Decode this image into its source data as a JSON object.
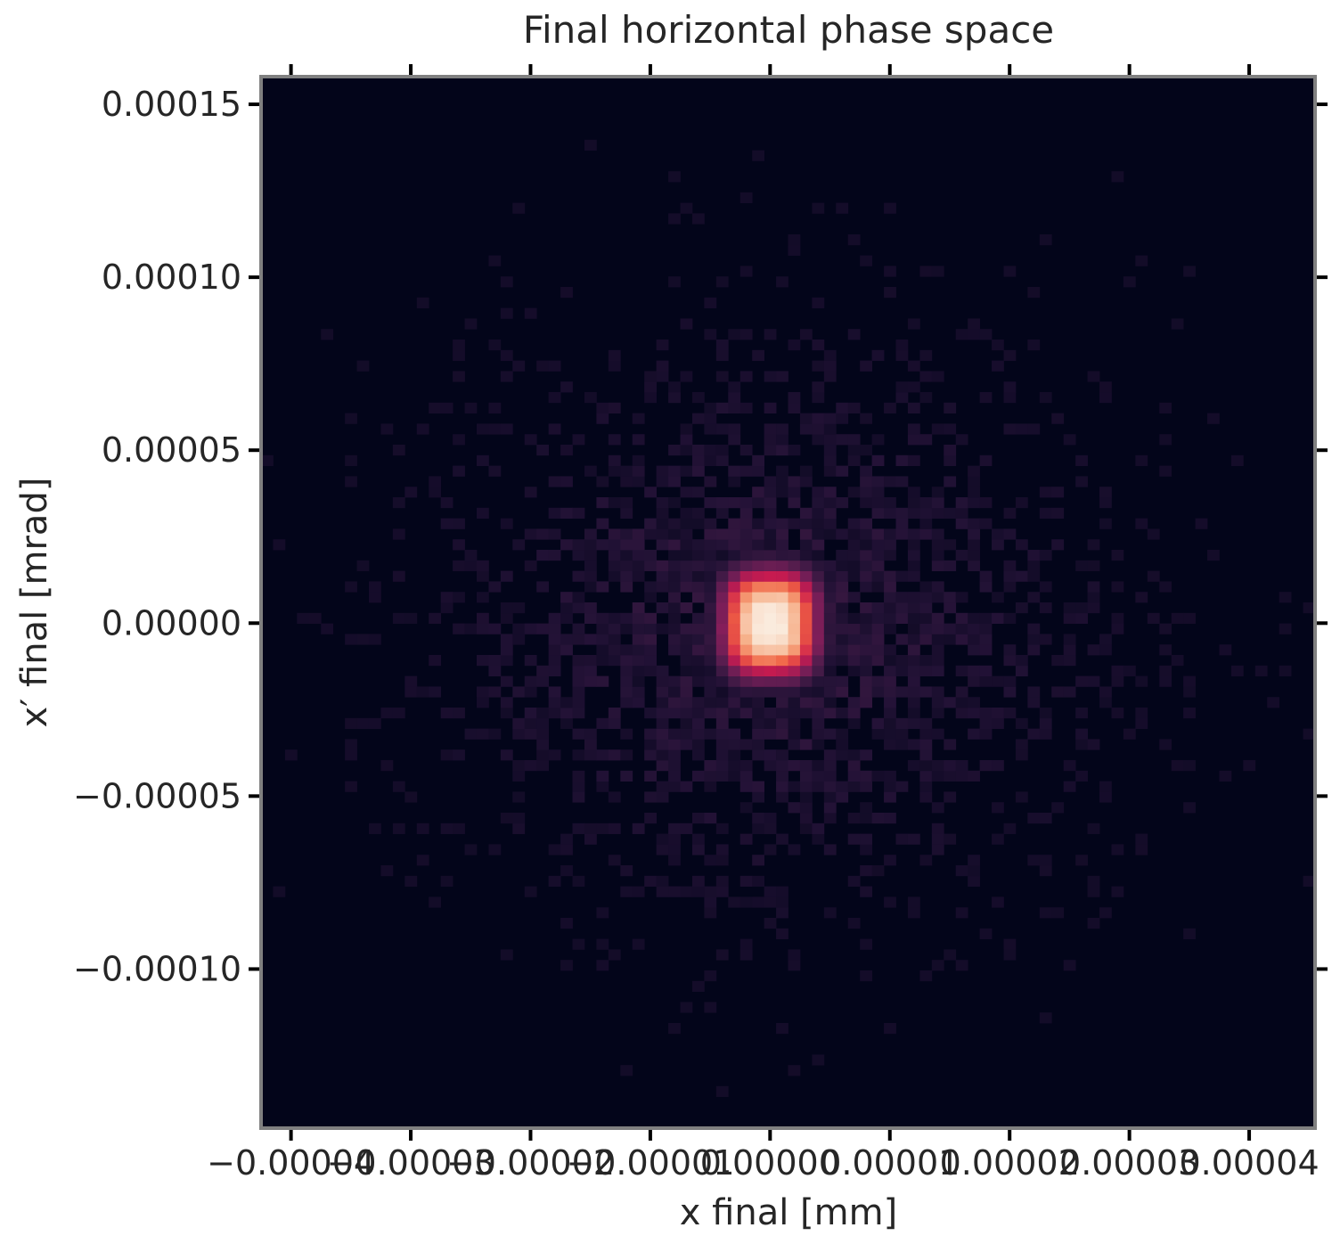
{
  "chart_data": {
    "type": "heatmap",
    "title": "Final horizontal phase space",
    "xlabel": "x final [mm]",
    "ylabel": "x′ final [mrad]",
    "xlim": [
      -4.25e-05,
      4.55e-05
    ],
    "ylim": [
      -0.000146,
      0.000158
    ],
    "x_ticks": [
      {
        "value": -4e-05,
        "label": "−0.00004"
      },
      {
        "value": -3e-05,
        "label": "−0.00003"
      },
      {
        "value": -2e-05,
        "label": "−0.00002"
      },
      {
        "value": -1e-05,
        "label": "−0.00001"
      },
      {
        "value": 0.0,
        "label": "0.00000"
      },
      {
        "value": 1e-05,
        "label": "0.00001"
      },
      {
        "value": 2e-05,
        "label": "0.00002"
      },
      {
        "value": 3e-05,
        "label": "0.00003"
      },
      {
        "value": 4e-05,
        "label": "0.00004"
      }
    ],
    "y_ticks": [
      {
        "value": 0.00015,
        "label": "0.00015"
      },
      {
        "value": 0.0001,
        "label": "0.00010"
      },
      {
        "value": 5e-05,
        "label": "0.00005"
      },
      {
        "value": 0.0,
        "label": "0.00000"
      },
      {
        "value": -5e-05,
        "label": "−0.00005"
      },
      {
        "value": -0.0001,
        "label": "−0.00010"
      }
    ],
    "grid": false,
    "colormap": "rocket",
    "background_color": "#03051a",
    "distribution": {
      "center_x": 0.0,
      "center_y": 0.0,
      "core_sigma_x": 3.2e-06,
      "core_sigma_y": 1.25e-05,
      "halo_sigma_x": 1.6e-05,
      "halo_sigma_y": 4.5e-05,
      "bins_x": 88,
      "bins_y": 100
    }
  }
}
